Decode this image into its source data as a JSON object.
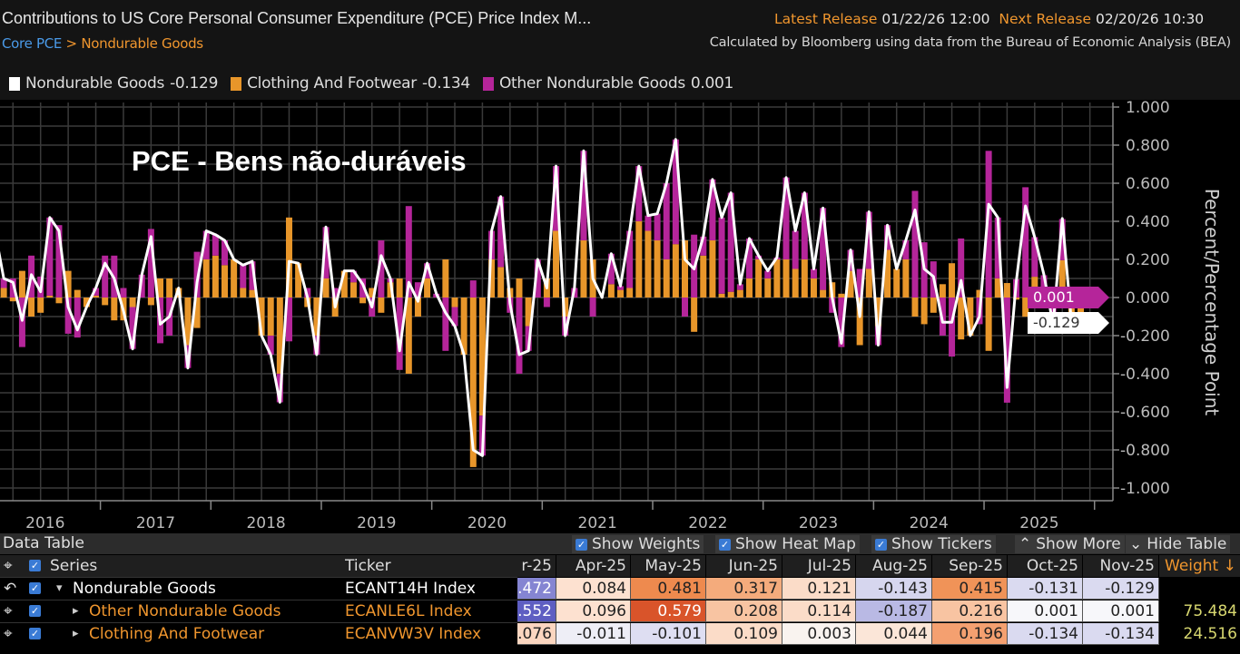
{
  "header": {
    "title": "Contributions to US Core Personal Consumer Expenditure (PCE) Price Index M...",
    "latest_label": "Latest Release",
    "latest_value": "01/22/26 12:00",
    "next_label": "Next Release",
    "next_value": "02/20/26 10:30",
    "breadcrumb": {
      "root": "Core PCE",
      "sep": " > ",
      "current": "Nondurable Goods"
    },
    "source": "Calculated by Bloomberg using data from the Bureau of Economic Analysis (BEA)"
  },
  "legend": [
    {
      "name": "Nondurable Goods",
      "value": "-0.129",
      "color": "#ffffff"
    },
    {
      "name": "Clothing And Footwear",
      "value": "-0.134",
      "color": "#e8962a"
    },
    {
      "name": "Other Nondurable Goods",
      "value": "0.001",
      "color": "#b5259a"
    }
  ],
  "annotation": "PCE - Bens não-duráveis",
  "chart_data": {
    "type": "stacked-bar+line",
    "ylabel": "Percent/Percentage Point",
    "ylim": [
      -1.0,
      1.0
    ],
    "yticks": [
      "1.000",
      "0.800",
      "0.600",
      "0.400",
      "0.200",
      "0.000",
      "-0.200",
      "-0.400",
      "-0.600",
      "-0.800",
      "-1.000"
    ],
    "ytick_values": [
      1.0,
      0.8,
      0.6,
      0.4,
      0.2,
      0.0,
      -0.2,
      -0.4,
      -0.6,
      -0.8,
      -1.0
    ],
    "grid": true,
    "colors": {
      "nondurable": "#ffffff",
      "clothing": "#e8962a",
      "other": "#b5259a"
    },
    "last_value_tags": [
      {
        "value": "0.001",
        "color": "#b5259a",
        "text_color": "#ffffff"
      },
      {
        "value": "-0.129",
        "color": "#ffffff",
        "text_color": "#333333"
      }
    ],
    "monthly": [
      {
        "year": "2016",
        "nondurable": [
          0.36,
          0.1,
          0.08,
          -0.12,
          0.12,
          0.03,
          0.42,
          0.35,
          -0.05,
          -0.17,
          -0.05,
          0.05
        ],
        "clothing": [
          0.17,
          0.05,
          -0.02,
          0.14,
          -0.1,
          -0.08,
          0.01,
          -0.03,
          0.14,
          0.04,
          -0.05,
          0.01
        ],
        "other": [
          0.19,
          0.05,
          0.1,
          -0.26,
          0.22,
          0.11,
          0.41,
          0.38,
          -0.19,
          -0.21,
          0.0,
          0.04
        ]
      },
      {
        "year": "2017",
        "nondurable": [
          0.18,
          0.1,
          -0.07,
          -0.27,
          0.12,
          0.32,
          -0.14,
          -0.1,
          0.05,
          -0.37,
          0.08,
          0.35
        ],
        "clothing": [
          -0.04,
          -0.12,
          -0.12,
          -0.05,
          0.0,
          -0.04,
          0.1,
          0.1,
          0.05,
          -0.25,
          -0.16,
          0.2
        ],
        "other": [
          0.22,
          0.22,
          0.05,
          -0.22,
          0.12,
          0.36,
          -0.24,
          -0.2,
          0.0,
          -0.12,
          0.24,
          0.15
        ]
      },
      {
        "year": "2018",
        "nondurable": [
          0.33,
          0.3,
          0.2,
          0.17,
          0.19,
          -0.2,
          -0.3,
          -0.55,
          0.19,
          0.18,
          0.0,
          -0.3
        ],
        "clothing": [
          0.22,
          0.17,
          0.2,
          0.05,
          0.04,
          -0.2,
          -0.2,
          -0.4,
          0.42,
          0.18,
          -0.05,
          -0.2
        ],
        "other": [
          0.11,
          0.13,
          0.0,
          0.12,
          0.15,
          0.0,
          -0.1,
          -0.15,
          -0.23,
          0.0,
          0.05,
          -0.1
        ]
      },
      {
        "year": "2019",
        "nondurable": [
          0.37,
          -0.05,
          0.14,
          0.14,
          0.07,
          -0.05,
          0.22,
          0.1,
          -0.28,
          0.08,
          -0.02,
          0.18
        ],
        "clothing": [
          0.1,
          -0.1,
          0.14,
          0.08,
          -0.03,
          0.05,
          -0.08,
          0.08,
          0.1,
          -0.4,
          -0.1,
          0.1
        ],
        "other": [
          0.27,
          0.05,
          0.0,
          0.06,
          0.1,
          -0.1,
          0.3,
          0.02,
          -0.38,
          0.48,
          0.08,
          0.08
        ]
      },
      {
        "year": "2020",
        "nondurable": [
          0.02,
          -0.08,
          -0.15,
          -0.3,
          -0.8,
          -0.83,
          0.35,
          0.53,
          -0.03,
          -0.3,
          -0.28,
          0.2
        ],
        "clothing": [
          0.0,
          0.2,
          -0.05,
          -0.3,
          -0.89,
          -0.62,
          0.2,
          0.16,
          0.05,
          0.1,
          -0.15,
          0.0
        ],
        "other": [
          0.02,
          -0.28,
          -0.1,
          0.0,
          0.09,
          -0.21,
          0.15,
          0.37,
          -0.08,
          -0.4,
          -0.13,
          0.2
        ]
      },
      {
        "year": "2021",
        "nondurable": [
          0.05,
          0.69,
          -0.2,
          0.05,
          0.77,
          0.1,
          0.0,
          0.23,
          0.06,
          0.35,
          0.69,
          0.43
        ],
        "clothing": [
          0.1,
          0.35,
          -0.1,
          0.0,
          0.3,
          0.2,
          0.0,
          0.07,
          0.04,
          0.05,
          0.4,
          0.35
        ],
        "other": [
          -0.05,
          0.34,
          -0.1,
          0.05,
          0.47,
          -0.1,
          0.0,
          0.16,
          0.02,
          0.3,
          0.29,
          0.08
        ]
      },
      {
        "year": "2022",
        "nondurable": [
          0.44,
          0.6,
          0.83,
          0.2,
          0.15,
          0.32,
          0.62,
          0.42,
          0.55,
          0.07,
          0.31,
          0.22
        ],
        "clothing": [
          0.3,
          0.2,
          0.28,
          0.3,
          -0.18,
          0.22,
          0.3,
          0.02,
          0.03,
          0.04,
          0.1,
          0.2
        ],
        "other": [
          0.14,
          0.4,
          0.55,
          -0.1,
          0.33,
          0.1,
          0.32,
          0.4,
          0.52,
          0.03,
          0.21,
          0.02
        ]
      },
      {
        "year": "2023",
        "nondurable": [
          0.14,
          0.21,
          0.63,
          0.35,
          0.55,
          0.15,
          0.47,
          0.0,
          -0.24,
          0.25,
          -0.1,
          0.45
        ],
        "clothing": [
          0.1,
          0.2,
          0.2,
          0.15,
          0.2,
          0.1,
          0.04,
          0.08,
          0.02,
          0.14,
          -0.25,
          0.15
        ],
        "other": [
          0.04,
          0.01,
          0.43,
          0.2,
          0.35,
          0.05,
          0.43,
          -0.08,
          -0.26,
          0.11,
          0.15,
          0.3
        ]
      },
      {
        "year": "2024",
        "nondurable": [
          -0.25,
          0.38,
          0.15,
          0.3,
          0.46,
          0.15,
          0.11,
          -0.13,
          -0.13,
          0.09,
          -0.2,
          -0.1
        ],
        "clothing": [
          -0.15,
          0.25,
          0.15,
          0.2,
          -0.1,
          -0.14,
          -0.08,
          0.07,
          0.18,
          -0.22,
          -0.2,
          0.04
        ],
        "other": [
          -0.1,
          0.13,
          0.0,
          0.1,
          0.56,
          0.29,
          0.19,
          -0.2,
          -0.31,
          0.31,
          0.0,
          -0.14
        ]
      },
      {
        "year": "2025",
        "nondurable": [
          0.49,
          0.42,
          -0.472,
          0.084,
          0.481,
          0.317,
          0.121,
          -0.143,
          0.415,
          -0.131,
          -0.129
        ],
        "clothing": [
          -0.28,
          0.1,
          0.076,
          -0.011,
          -0.101,
          0.109,
          0.003,
          0.044,
          0.196,
          -0.134,
          -0.134
        ],
        "other": [
          0.77,
          0.32,
          -0.552,
          0.096,
          0.579,
          0.208,
          0.114,
          -0.187,
          0.216,
          0.001,
          0.001
        ]
      }
    ]
  },
  "table": {
    "title": "Data Table",
    "options": [
      {
        "label": "Show Weights",
        "checked": true
      },
      {
        "label": "Show Heat Map",
        "checked": true
      },
      {
        "label": "Show Tickers",
        "checked": true
      },
      {
        "label": "Show More",
        "icon": "chevron-double-up"
      },
      {
        "label": "Hide Table",
        "icon": "chevron-double-down"
      }
    ],
    "col_series": "Series",
    "col_ticker": "Ticker",
    "col_weight": "Weight ↓",
    "months": [
      "r-25",
      "Apr-25",
      "May-25",
      "Jun-25",
      "Jul-25",
      "Aug-25",
      "Sep-25",
      "Oct-25",
      "Nov-25"
    ],
    "rows": [
      {
        "name": "Nondurable Goods",
        "expander": "▾",
        "ticker": "ECANT14H Index",
        "text_color": "#ffffff",
        "row_icon": "reset-icon",
        "values": [
          ".472",
          "0.084",
          "0.481",
          "0.317",
          "0.121",
          "-0.143",
          "0.415",
          "-0.131",
          "-0.129"
        ],
        "heat": [
          "#8585d2",
          "#fde1d0",
          "#ee8a4e",
          "#f4ab7c",
          "#fbdcc8",
          "#d6d6ee",
          "#f09358",
          "#dadaf0",
          "#dadaf0"
        ],
        "weight": ""
      },
      {
        "name": "Other Nondurable Goods",
        "expander": "▸",
        "ticker": "ECANLE6L Index",
        "text_color": "#f0962e",
        "row_icon": "crosshair-icon",
        "values": [
          ".552",
          "0.096",
          "0.579",
          "0.208",
          "0.114",
          "-0.187",
          "0.216",
          "0.001",
          "0.001"
        ],
        "heat": [
          "#5e5ec2",
          "#fde1d0",
          "#d9542a",
          "#f8c4a2",
          "#fbdcc8",
          "#b9b9e4",
          "#f8c4a2",
          "#f7f7fa",
          "#f7f7fa"
        ],
        "weight": "75.484"
      },
      {
        "name": "Clothing And Footwear",
        "expander": "▸",
        "ticker": "ECANVW3V Index",
        "text_color": "#f0962e",
        "row_icon": "crosshair-icon",
        "values": [
          ".076",
          "-0.011",
          "-0.101",
          "0.109",
          "0.003",
          "0.044",
          "0.196",
          "-0.134",
          "-0.134"
        ],
        "heat": [
          "#fbd6c0",
          "#eeeef6",
          "#dedef2",
          "#fbdcc8",
          "#f9f3ef",
          "#fbe6d8",
          "#f4a070",
          "#dadaf0",
          "#dadaf0"
        ],
        "weight": "24.516"
      }
    ]
  }
}
